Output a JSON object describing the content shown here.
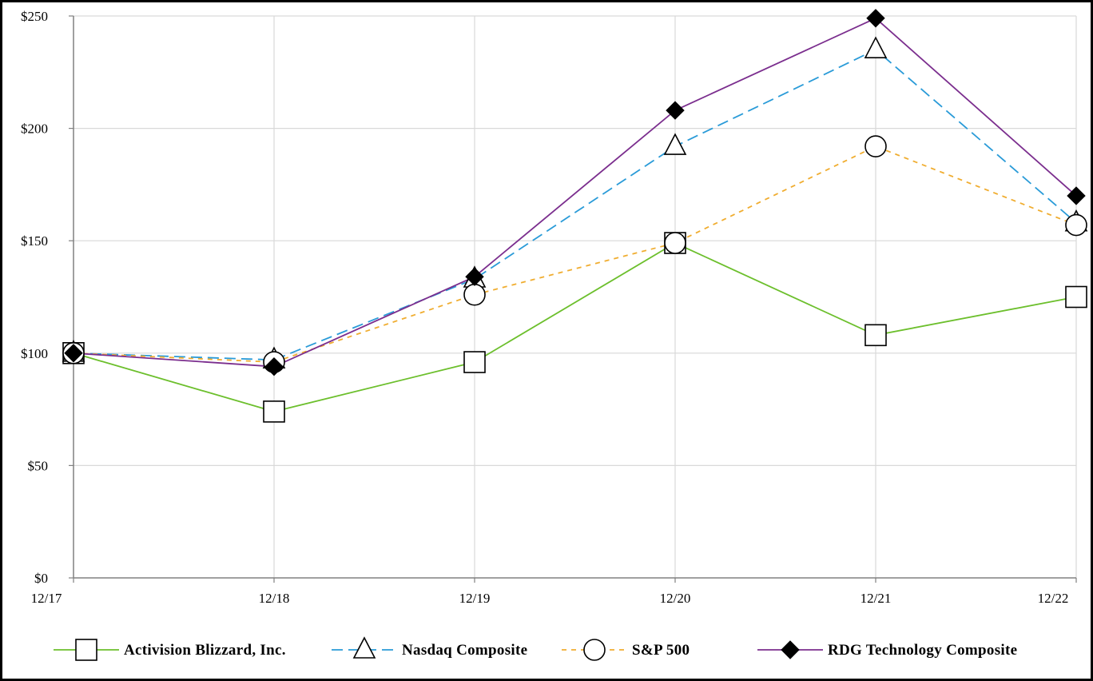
{
  "chart_data": {
    "type": "line",
    "title": "",
    "xlabel": "",
    "ylabel": "",
    "categories": [
      "12/17",
      "12/18",
      "12/19",
      "12/20",
      "12/21",
      "12/22"
    ],
    "ylim": [
      0,
      250
    ],
    "yticks": [
      0,
      50,
      100,
      150,
      200,
      250
    ],
    "ytick_labels": [
      "$0",
      "$50",
      "$100",
      "$150",
      "$200",
      "$250"
    ],
    "grid": true,
    "legend_position": "bottom",
    "series": [
      {
        "name": "Activision Blizzard, Inc.",
        "values": [
          100,
          74,
          96,
          149,
          108,
          125
        ],
        "color": "#6cbf2c",
        "dash": "solid",
        "marker": "square"
      },
      {
        "name": "Nasdaq Composite",
        "values": [
          100,
          97,
          133,
          192,
          235,
          158
        ],
        "color": "#2a9bd8",
        "dash": "dashed",
        "marker": "triangle"
      },
      {
        "name": "S&P 500",
        "values": [
          100,
          96,
          126,
          149,
          192,
          157
        ],
        "color": "#f0ad30",
        "dash": "dotted",
        "marker": "circle"
      },
      {
        "name": "RDG Technology Composite",
        "values": [
          100,
          94,
          134,
          208,
          249,
          170
        ],
        "color": "#7b2e8e",
        "dash": "solid",
        "marker": "diamond"
      }
    ]
  }
}
